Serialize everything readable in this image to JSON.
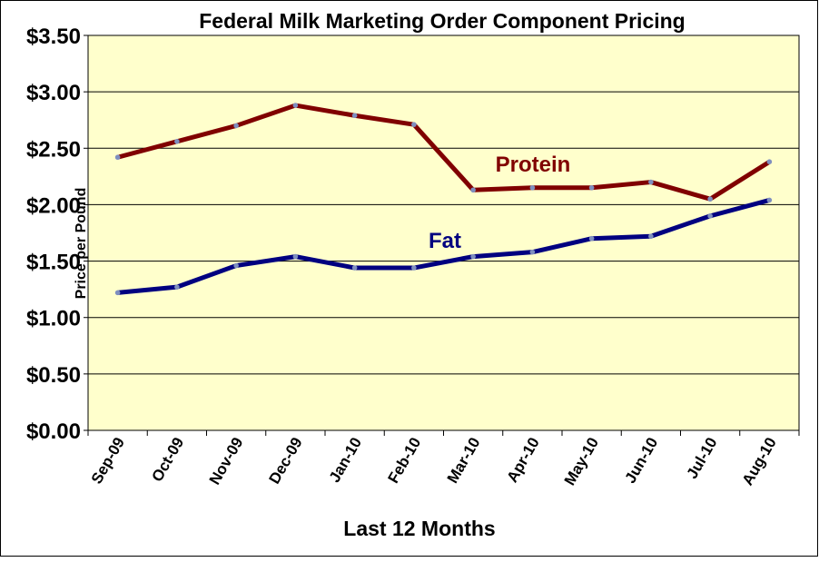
{
  "chart_data": {
    "type": "line",
    "title": "Federal Milk Marketing Order Component Pricing",
    "xlabel": "Last 12 Months",
    "ylabel": "Price per Pound",
    "ylim": [
      0,
      3.5
    ],
    "yticks": [
      "$0.00",
      "$0.50",
      "$1.00",
      "$1.50",
      "$2.00",
      "$2.50",
      "$3.00",
      "$3.50"
    ],
    "ytick_values": [
      0,
      0.5,
      1,
      1.5,
      2,
      2.5,
      3,
      3.5
    ],
    "grid": true,
    "categories": [
      "Sep-09",
      "Oct-09",
      "Nov-09",
      "Dec-09",
      "Jan-10",
      "Feb-10",
      "Mar-10",
      "Apr-10",
      "May-10",
      "Jun-10",
      "Jul-10",
      "Aug-10"
    ],
    "series": [
      {
        "name": "Protein",
        "color": "#800000",
        "values": [
          2.42,
          2.56,
          2.7,
          2.88,
          2.79,
          2.71,
          2.13,
          2.15,
          2.15,
          2.2,
          2.05,
          2.38
        ]
      },
      {
        "name": "Fat",
        "color": "#000080",
        "values": [
          1.22,
          1.27,
          1.46,
          1.54,
          1.44,
          1.44,
          1.54,
          1.58,
          1.7,
          1.72,
          1.9,
          2.04
        ]
      }
    ],
    "plot_background": "#FFFFCC",
    "marker_color": "#7F8FBF"
  }
}
